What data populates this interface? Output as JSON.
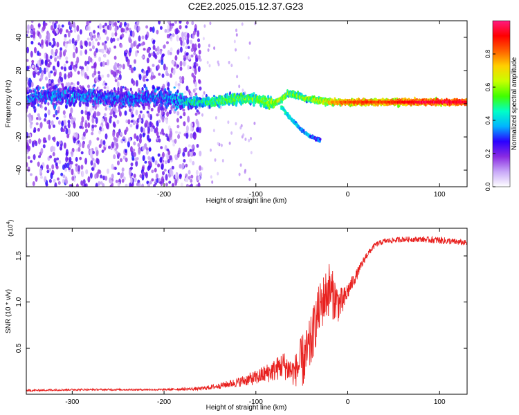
{
  "title": "C2E2.2025.015.12.37.G23",
  "chart_data": [
    {
      "type": "heatmap",
      "xlabel": "Height of straight line (km)",
      "ylabel": "Frequency (Hz)",
      "xlim": [
        -350,
        130
      ],
      "ylim": [
        -50,
        50
      ],
      "xticks": [
        -300,
        -200,
        -100,
        0,
        100
      ],
      "yticks": [
        -40,
        -20,
        0,
        20,
        40
      ],
      "colorbar": {
        "label": "Normalized spectral amplitude",
        "range": [
          0,
          1
        ],
        "ticks": [
          "0.0",
          "0.2",
          "0.4",
          "0.6",
          "0.8"
        ],
        "colors": [
          "#ffffff",
          "#c8a8f8",
          "#8a2be2",
          "#2b00ff",
          "#00b4ff",
          "#00ffc8",
          "#40ff00",
          "#c8ff00",
          "#ffd000",
          "#ff6000",
          "#ff0000",
          "#ff1a80"
        ]
      },
      "ridge": {
        "x": [
          -350,
          -300,
          -250,
          -200,
          -180,
          -150,
          -120,
          -100,
          -90,
          -80,
          -72,
          -65,
          -55,
          -45,
          -30,
          -20,
          -10,
          0,
          20,
          40,
          60,
          80,
          100,
          130
        ],
        "y": [
          4,
          5,
          3,
          4,
          1,
          1,
          3,
          3,
          1,
          0,
          3,
          6,
          5,
          3,
          2,
          1,
          1,
          1,
          1,
          1,
          1,
          1,
          1,
          1
        ],
        "amplitude": [
          0.3,
          0.32,
          0.3,
          0.3,
          0.4,
          0.5,
          0.55,
          0.55,
          0.6,
          0.65,
          0.6,
          0.55,
          0.6,
          0.6,
          0.65,
          0.75,
          0.8,
          0.85,
          0.85,
          0.85,
          0.9,
          0.95,
          0.95,
          0.95
        ]
      },
      "branch": {
        "x": [
          -72,
          -65,
          -60,
          -55,
          -50,
          -45,
          -40,
          -35,
          -30
        ],
        "y": [
          -2,
          -7,
          -10,
          -13,
          -16,
          -18,
          -20,
          -21,
          -22
        ],
        "amplitude": [
          0.45,
          0.4,
          0.4,
          0.38,
          0.36,
          0.35,
          0.33,
          0.3,
          0.3
        ]
      }
    },
    {
      "type": "line",
      "xlabel": "Height of straight line (km)",
      "ylabel": "SNR (10 * v/v)",
      "y_multiplier": "(x10^4)",
      "xlim": [
        -350,
        130
      ],
      "ylim": [
        0,
        1.8
      ],
      "xticks": [
        -300,
        -200,
        -100,
        0,
        100
      ],
      "yticks": [
        0.5,
        1.0,
        1.5
      ],
      "ytick_labels": [
        "0.5",
        "1.0",
        "1.5"
      ],
      "color": "#e8201e",
      "series": [
        {
          "x": [
            -350,
            -300,
            -250,
            -200,
            -160,
            -140,
            -120,
            -100,
            -80,
            -70,
            -60,
            -55,
            -50,
            -45,
            -40,
            -35,
            -30,
            -25,
            -20,
            -15,
            -10,
            -5,
            0,
            10,
            20,
            30,
            40,
            60,
            80,
            100,
            130
          ],
          "y": [
            0.04,
            0.05,
            0.05,
            0.05,
            0.06,
            0.09,
            0.13,
            0.18,
            0.26,
            0.32,
            0.24,
            0.28,
            0.35,
            0.42,
            0.55,
            0.78,
            0.95,
            1.05,
            1.15,
            1.05,
            0.98,
            1.0,
            1.12,
            1.3,
            1.5,
            1.62,
            1.66,
            1.68,
            1.68,
            1.67,
            1.64
          ],
          "noise": [
            0.01,
            0.01,
            0.01,
            0.01,
            0.02,
            0.03,
            0.05,
            0.08,
            0.12,
            0.15,
            0.15,
            0.2,
            0.3,
            0.3,
            0.3,
            0.28,
            0.28,
            0.28,
            0.3,
            0.25,
            0.2,
            0.15,
            0.1,
            0.06,
            0.04,
            0.03,
            0.03,
            0.03,
            0.03,
            0.04,
            0.03
          ]
        }
      ]
    }
  ]
}
